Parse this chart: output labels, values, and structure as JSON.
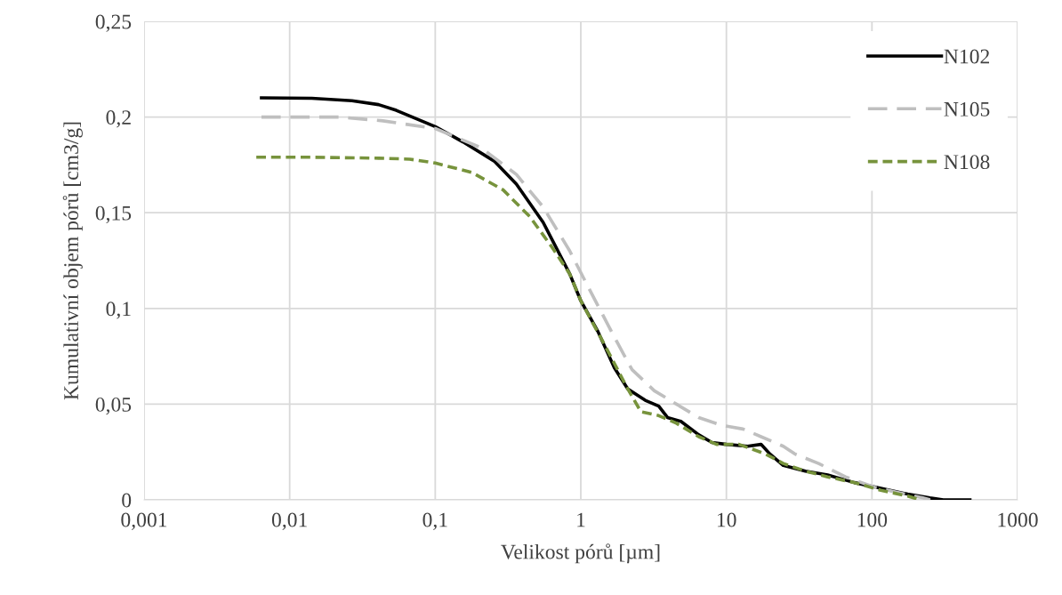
{
  "chart_data": {
    "type": "line",
    "xlabel": "Velikost pórů [µm]",
    "ylabel": "Kumulativní objem pórů [cm3/g]",
    "log": "x",
    "grid": true,
    "legend": "top right",
    "marker": "none",
    "xlim": [
      0.001,
      1000
    ],
    "xticks": [
      {
        "value": 0.001,
        "label": "0,001"
      },
      {
        "value": 0.01,
        "label": "0,01"
      },
      {
        "value": 0.1,
        "label": "0,1"
      },
      1,
      10,
      100,
      1000
    ],
    "ylim": [
      0,
      0.25
    ],
    "yticks": [
      0,
      {
        "value": 0.05,
        "label": "0,05"
      },
      {
        "value": 0.1,
        "label": "0,1"
      },
      {
        "value": 0.15,
        "label": "0,15"
      },
      {
        "value": 0.2,
        "label": "0,2"
      },
      {
        "value": 0.25,
        "label": "0,25"
      }
    ],
    "series": [
      {
        "name": "N102",
        "color": "#000000",
        "line_style": "solid",
        "x": [
          0.0064,
          0.0142,
          0.0268,
          0.0408,
          0.054,
          0.1,
          0.155,
          0.254,
          0.361,
          0.551,
          0.84,
          1,
          1.31,
          1.7,
          2.1,
          2.77,
          3.43,
          3.94,
          4.87,
          6.46,
          7.95,
          10,
          14,
          17.3,
          19.9,
          24.6,
          34.9,
          49.6,
          75.7,
          115,
          176,
          250,
          309,
          471
        ],
        "values": [
          0.21,
          0.2098,
          0.2085,
          0.2065,
          0.2035,
          0.195,
          0.187,
          0.177,
          0.165,
          0.145,
          0.118,
          0.104,
          0.088,
          0.069,
          0.058,
          0.052,
          0.049,
          0.043,
          0.041,
          0.034,
          0.03,
          0.029,
          0.028,
          0.029,
          0.024,
          0.018,
          0.015,
          0.013,
          0.009,
          0.006,
          0.003,
          0.001,
          0,
          0
        ]
      },
      {
        "name": "N105",
        "color": "#bfbfbf",
        "line_style": "dashed",
        "x": [
          0.0064,
          0.0217,
          0.0438,
          0.1,
          0.206,
          0.361,
          0.551,
          0.84,
          1.11,
          1.7,
          2.25,
          3.2,
          4.54,
          6.46,
          9.2,
          13,
          17.3,
          24.6,
          29.5,
          43,
          65.8,
          105,
          224,
          251
        ],
        "values": [
          0.2,
          0.2,
          0.198,
          0.194,
          0.184,
          0.17,
          0.153,
          0.13,
          0.112,
          0.085,
          0.068,
          0.057,
          0.05,
          0.043,
          0.039,
          0.037,
          0.033,
          0.028,
          0.024,
          0.019,
          0.012,
          0.0065,
          0.001,
          0
        ]
      },
      {
        "name": "N108",
        "color": "#77933c",
        "line_style": "dotted",
        "x": [
          0.0059,
          0.0142,
          0.0408,
          0.0668,
          0.1,
          0.179,
          0.292,
          0.446,
          0.634,
          0.84,
          1,
          1.48,
          2.1,
          2.59,
          3.43,
          4.54,
          6.46,
          8.55,
          12.2,
          18.5,
          24.6,
          34.9,
          49.6,
          75.7,
          115,
          176,
          203
        ],
        "values": [
          0.179,
          0.179,
          0.1785,
          0.178,
          0.176,
          0.171,
          0.162,
          0.148,
          0.132,
          0.118,
          0.104,
          0.08,
          0.058,
          0.046,
          0.044,
          0.04,
          0.033,
          0.029,
          0.029,
          0.024,
          0.019,
          0.015,
          0.012,
          0.009,
          0.005,
          0.002,
          0.0005
        ]
      }
    ]
  }
}
